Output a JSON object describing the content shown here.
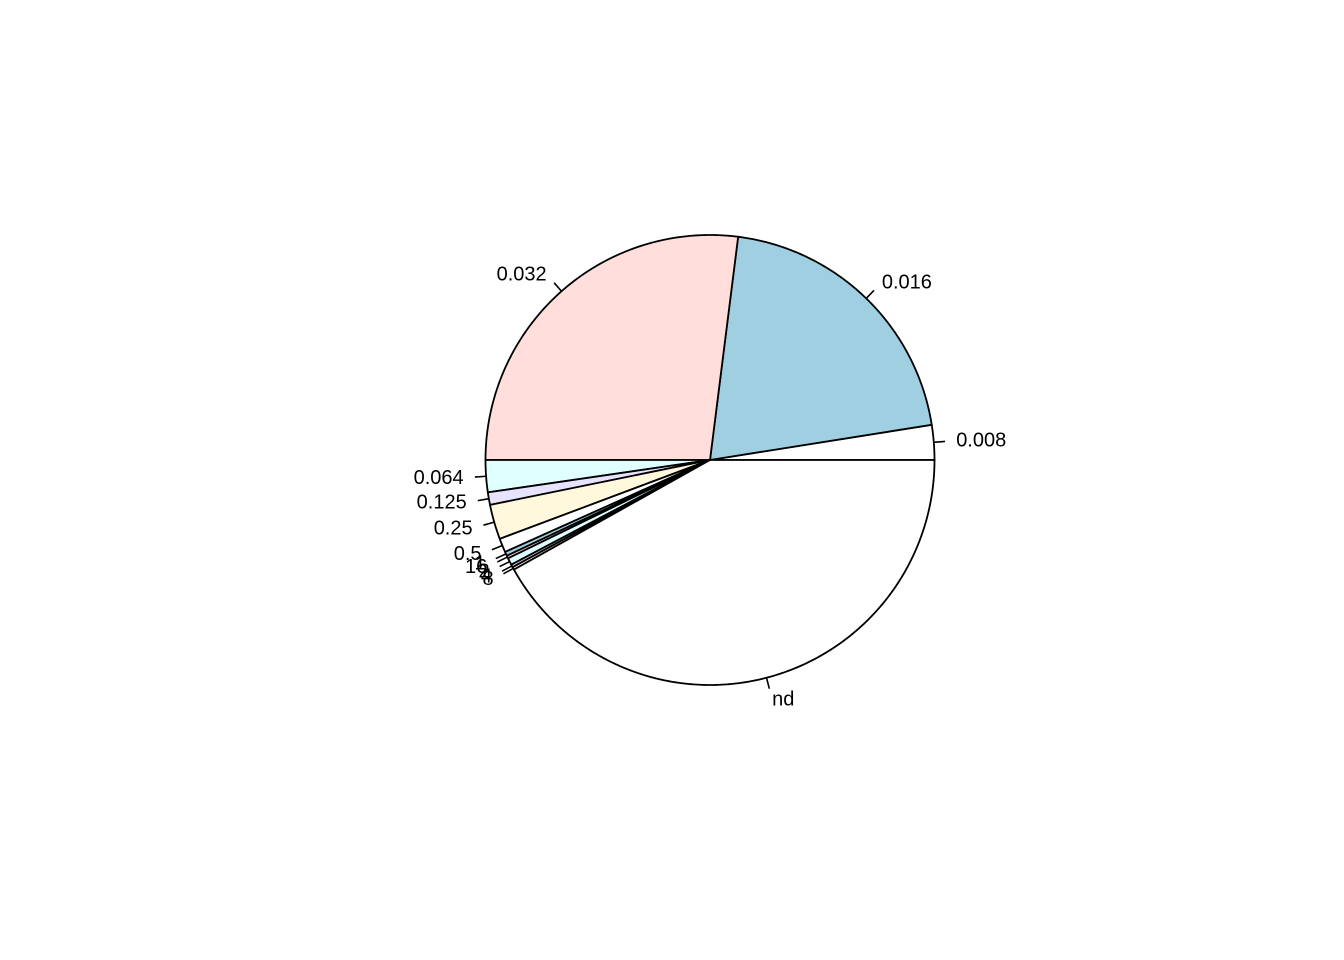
{
  "chart_data": {
    "type": "pie",
    "title": "",
    "direction": "counterclockwise",
    "start_angle_deg": 0,
    "slices": [
      {
        "label": "0.008",
        "value": 2.5,
        "color": "#ffffff"
      },
      {
        "label": "0.016",
        "value": 20.5,
        "color": "#9fcfe0"
      },
      {
        "label": "0.032",
        "value": 27.0,
        "color": "#ffdedc"
      },
      {
        "label": "0.064",
        "value": 2.3,
        "color": "#e0ffff"
      },
      {
        "label": "0.125",
        "value": 0.9,
        "color": "#e7e3ff"
      },
      {
        "label": "0.25",
        "value": 2.5,
        "color": "#fff8dc"
      },
      {
        "label": "0.5",
        "value": 1.0,
        "color": "#ffffff"
      },
      {
        "label": "1",
        "value": 0.3,
        "color": "#9fcfe0"
      },
      {
        "label": "16",
        "value": 0.2,
        "color": "#ffdedc"
      },
      {
        "label": "2",
        "value": 0.5,
        "color": "#e0ffff"
      },
      {
        "label": "4",
        "value": 0.2,
        "color": "#e7e3ff"
      },
      {
        "label": "8",
        "value": 0.2,
        "color": "#fff8dc"
      },
      {
        "label": "nd",
        "value": 41.9,
        "color": "#ffffff"
      }
    ]
  }
}
